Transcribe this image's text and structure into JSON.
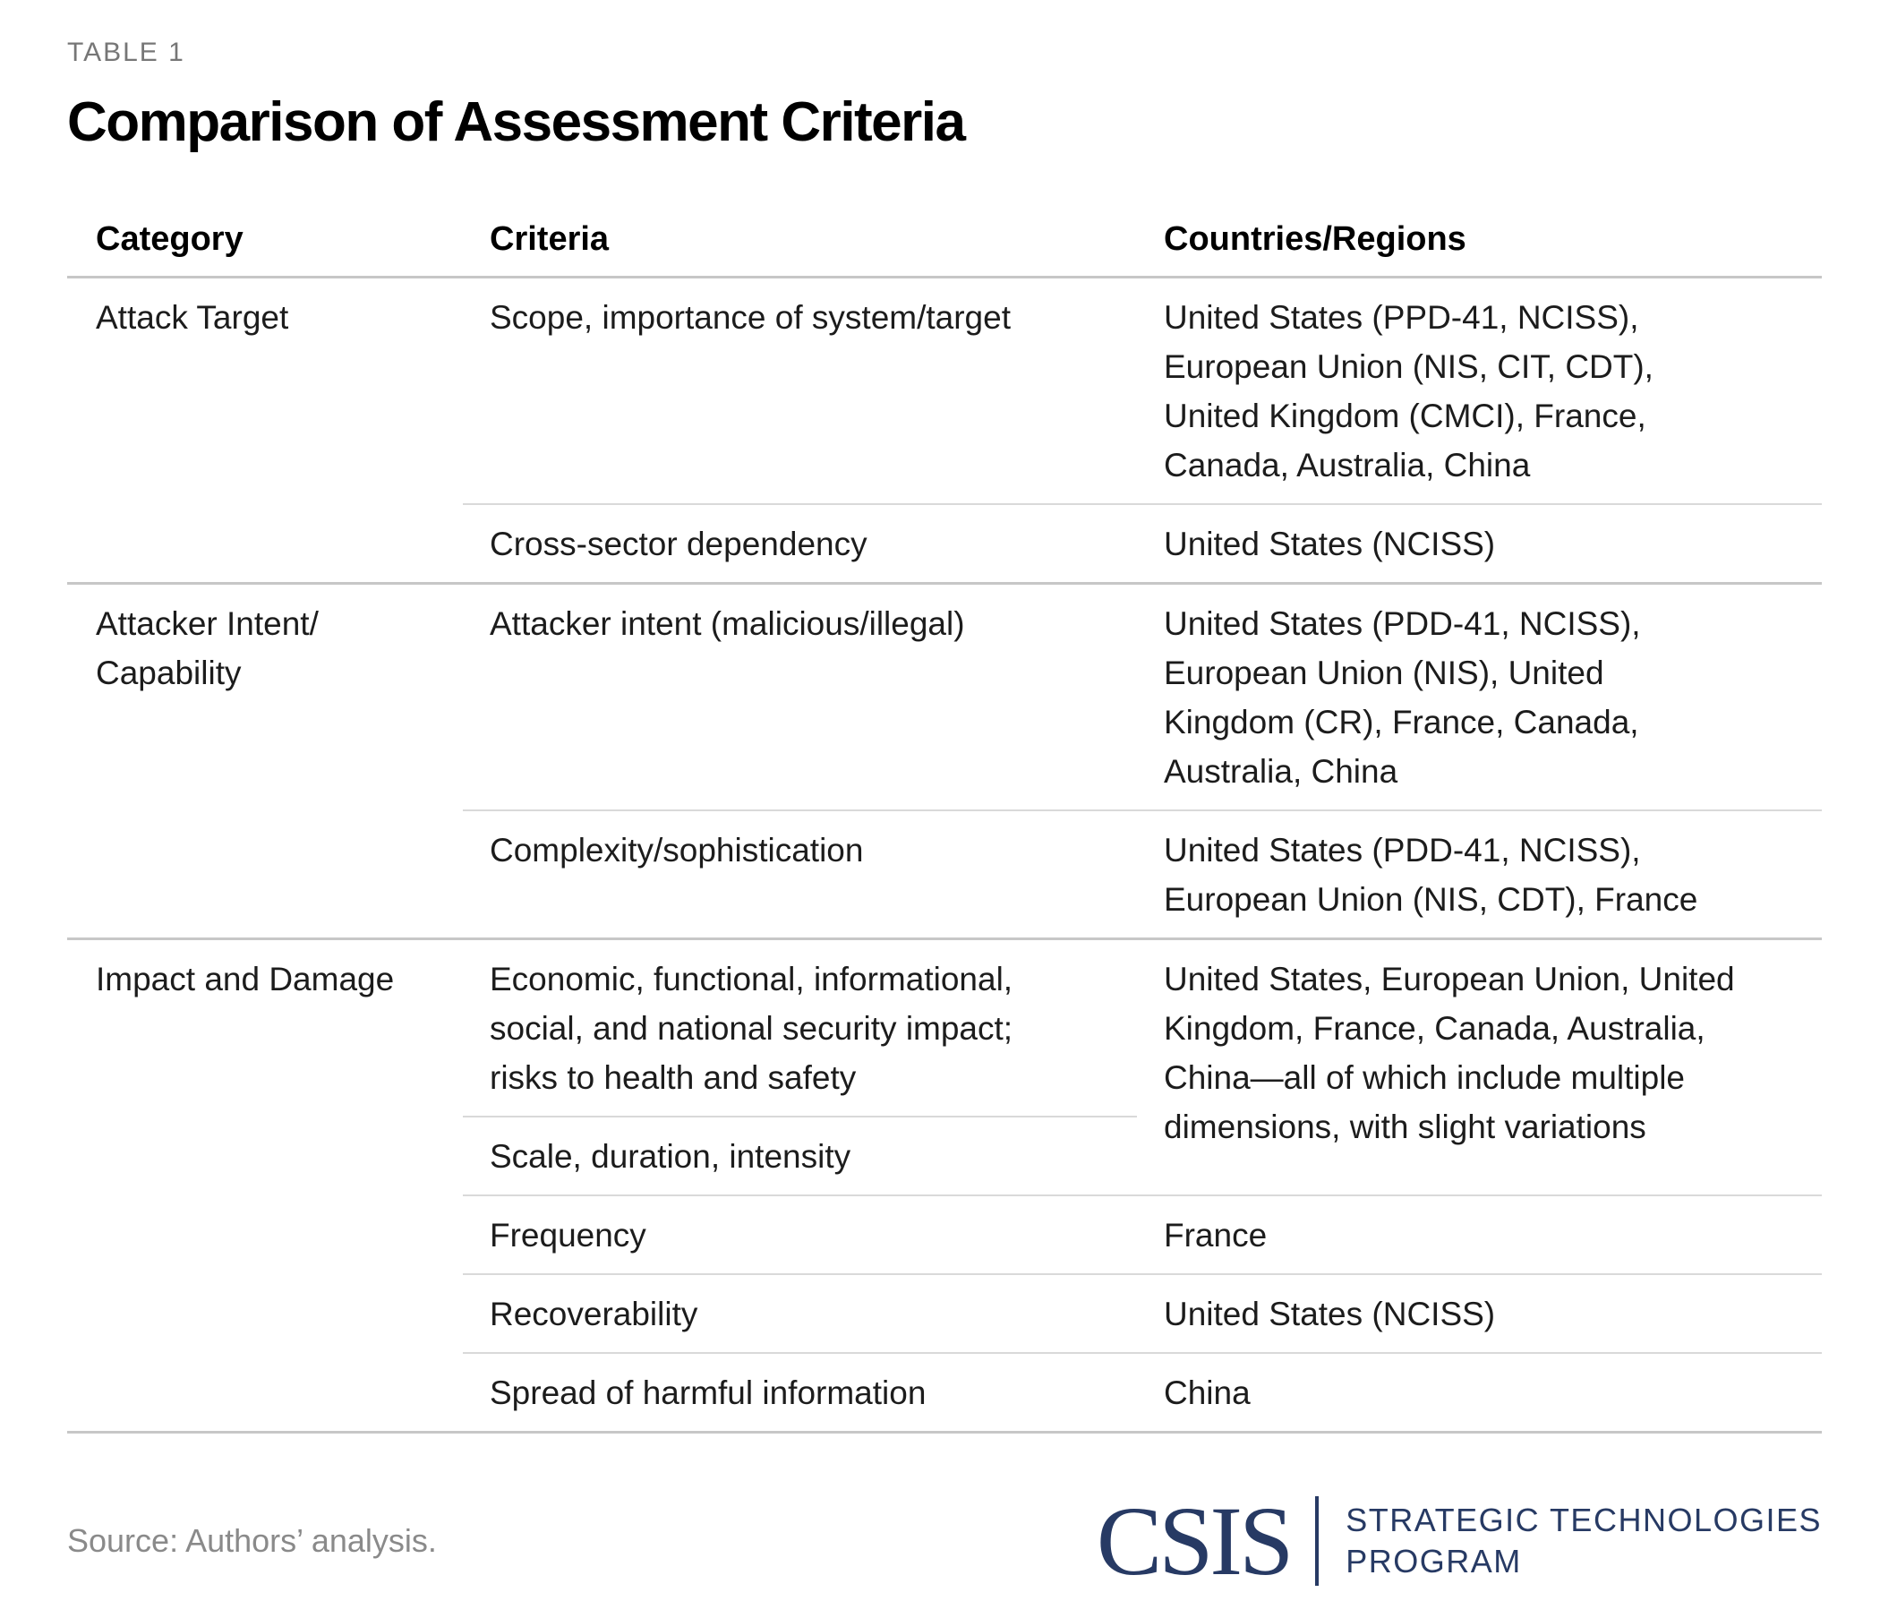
{
  "table_label": "TABLE 1",
  "title": "Comparison of Assessment Criteria",
  "columns": [
    "Category",
    "Criteria",
    "Countries/Regions"
  ],
  "sections": [
    {
      "category": "Attack Target",
      "rows": [
        {
          "criteria": "Scope, importance of system/target",
          "countries": "United States (PPD-41, NCISS),\nEuropean Union (NIS, CIT, CDT),\nUnited Kingdom (CMCI), France,\nCanada, Australia, China"
        },
        {
          "criteria": "Cross-sector dependency",
          "countries": "United States (NCISS)"
        }
      ]
    },
    {
      "category": "Attacker Intent/\nCapability",
      "rows": [
        {
          "criteria": "Attacker intent (malicious/illegal)",
          "countries": "United States (PDD-41, NCISS),\nEuropean Union (NIS), United\nKingdom (CR), France, Canada,\nAustralia, China"
        },
        {
          "criteria": "Complexity/sophistication",
          "countries": "United States (PDD-41, NCISS),\nEuropean Union (NIS, CDT), France"
        }
      ]
    },
    {
      "category": "Impact and Damage",
      "rows": [
        {
          "criteria": "Economic, functional, informational,\nsocial, and national security impact;\nrisks to health and safety",
          "countries": "United States, European Union, United\nKingdom, France, Canada, Australia,\nChina—all of which include multiple\ndimensions, with slight variations"
        },
        {
          "criteria": "Scale, duration, intensity",
          "countries": ""
        },
        {
          "criteria": "Frequency",
          "countries": "France"
        },
        {
          "criteria": "Recoverability",
          "countries": "United States (NCISS)"
        },
        {
          "criteria": "Spread of harmful information",
          "countries": "China"
        }
      ]
    }
  ],
  "source": "Source: Authors’ analysis.",
  "logo": {
    "acronym": "CSIS",
    "program_line1": "STRATEGIC TECHNOLOGIES",
    "program_line2": "PROGRAM"
  },
  "colors": {
    "brand_navy": "#273a64",
    "rule_strong": "#c7c7c7",
    "rule_light": "#d9d9d9",
    "muted_text": "#767676",
    "source_text": "#8a8a8a",
    "body_text": "#1c1c1c"
  }
}
